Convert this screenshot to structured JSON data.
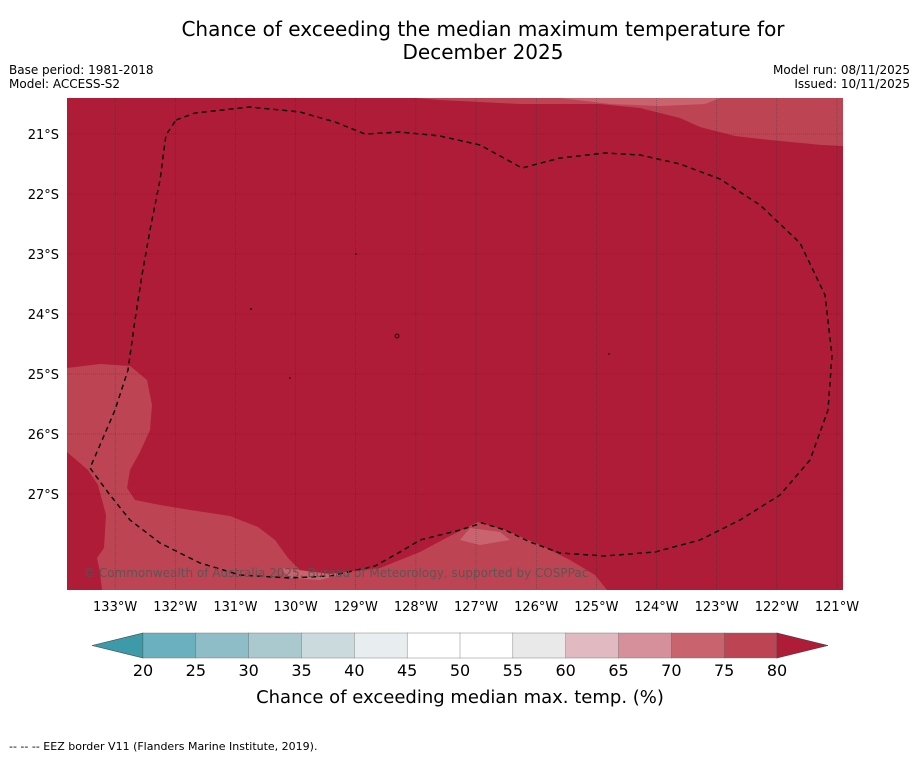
{
  "chart_data": {
    "type": "heatmap",
    "title_line1": "Chance of exceeding the median maximum temperature for",
    "title_line2": "December 2025",
    "base_period": "Base period: 1981-2018",
    "model": "Model: ACCESS-S2",
    "model_run": "Model run: 08/11/2025",
    "issued": "Issued: 10/11/2025",
    "lon_range": [
      -133.8,
      -120.9
    ],
    "lat_range": [
      -28.6,
      -20.4
    ],
    "x_ticks": [
      {
        "value": -133,
        "label": "133°W"
      },
      {
        "value": -132,
        "label": "132°W"
      },
      {
        "value": -131,
        "label": "131°W"
      },
      {
        "value": -130,
        "label": "130°W"
      },
      {
        "value": -129,
        "label": "129°W"
      },
      {
        "value": -128,
        "label": "128°W"
      },
      {
        "value": -127,
        "label": "127°W"
      },
      {
        "value": -126,
        "label": "126°W"
      },
      {
        "value": -125,
        "label": "125°W"
      },
      {
        "value": -124,
        "label": "124°W"
      },
      {
        "value": -123,
        "label": "123°W"
      },
      {
        "value": -122,
        "label": "122°W"
      },
      {
        "value": -121,
        "label": "121°W"
      }
    ],
    "y_ticks": [
      {
        "value": -21,
        "label": "21°S"
      },
      {
        "value": -22,
        "label": "22°S"
      },
      {
        "value": -23,
        "label": "23°S"
      },
      {
        "value": -24,
        "label": "24°S"
      },
      {
        "value": -25,
        "label": "25°S"
      },
      {
        "value": -26,
        "label": "26°S"
      },
      {
        "value": -27,
        "label": "27°S"
      }
    ],
    "dominant_category": "80+",
    "secondary_category": "75-80",
    "colorbar": {
      "label": "Chance of exceeding median max. temp. (%)",
      "ticks": [
        "20",
        "25",
        "30",
        "35",
        "40",
        "45",
        "50",
        "55",
        "60",
        "65",
        "70",
        "75",
        "80"
      ],
      "colors": [
        "#3c9aa9",
        "#6bb0bf",
        "#8fbdc7",
        "#aac9cf",
        "#cbdadd",
        "#e8eef0",
        "#ffffff",
        "#ffffff",
        "#e9e9e9",
        "#e1b9c0",
        "#d6909b",
        "#c9646f",
        "#bd4553",
        "#af1c38"
      ],
      "over_color": "#af1c38",
      "under_color": "#3c9aa9"
    },
    "copyright": "© Commonwealth of Australia 2025, Bureau of Meteorology, supported by COSPPac",
    "footer": "--  --  -- EEZ border V11 (Flanders Marine Institute, 2019)."
  }
}
